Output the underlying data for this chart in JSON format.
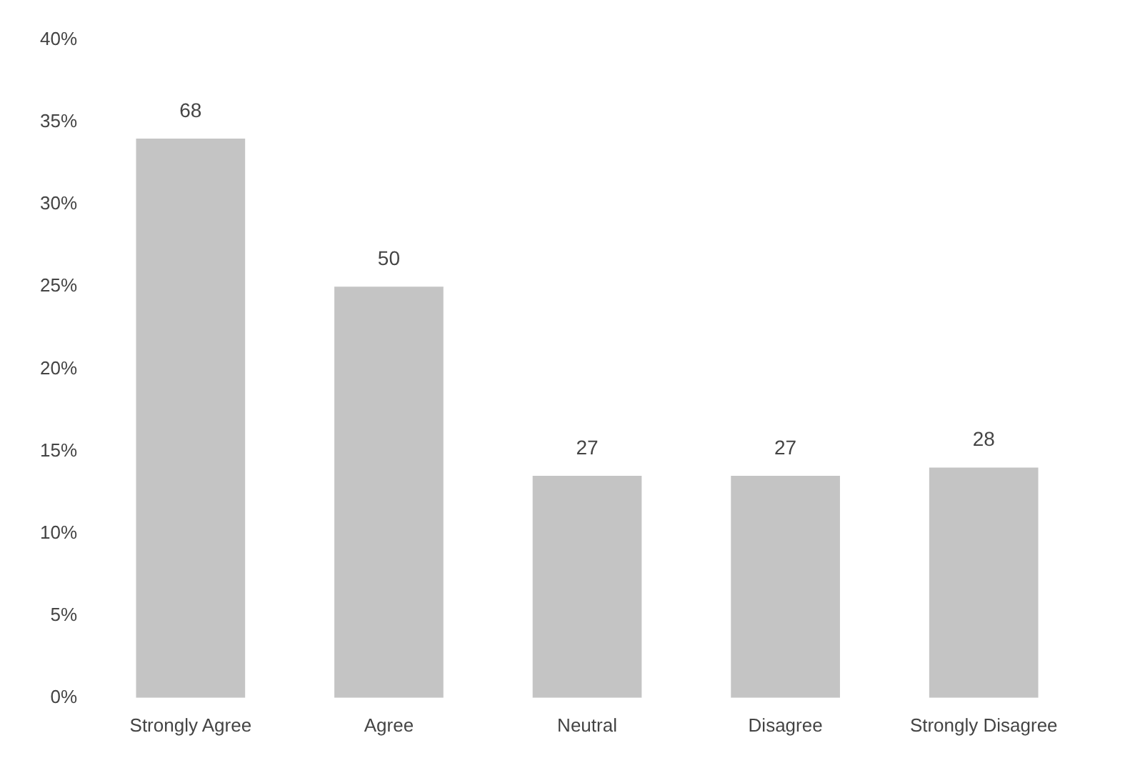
{
  "chart_data": {
    "type": "bar",
    "categories": [
      "Strongly Agree",
      "Agree",
      "Neutral",
      "Disagree",
      "Strongly Disagree"
    ],
    "values": [
      34,
      25,
      13.5,
      13.5,
      14
    ],
    "annotations": [
      {
        "text": "68",
        "x": "Strongly Agree",
        "y": 34
      },
      {
        "text": "50",
        "x": "Agree",
        "y": 25
      },
      {
        "text": "27",
        "x": "Neutral",
        "y": 13.5
      },
      {
        "text": "27",
        "x": "Disagree",
        "y": 13.5
      },
      {
        "text": "28",
        "x": "Strongly Disagree",
        "y": 14
      }
    ],
    "color": "#c4c4c4",
    "ylim": [
      0,
      40
    ],
    "yticks": [
      {
        "value": 0,
        "label": "0%"
      },
      {
        "value": 5,
        "label": "5%"
      },
      {
        "value": 10,
        "label": "10%"
      },
      {
        "value": 15,
        "label": "15%"
      },
      {
        "value": 20,
        "label": "20%"
      },
      {
        "value": 25,
        "label": "25%"
      },
      {
        "value": 30,
        "label": "30%"
      },
      {
        "value": 35,
        "label": "35%"
      },
      {
        "value": 40,
        "label": "40%"
      }
    ],
    "grid": false,
    "legend": false
  }
}
